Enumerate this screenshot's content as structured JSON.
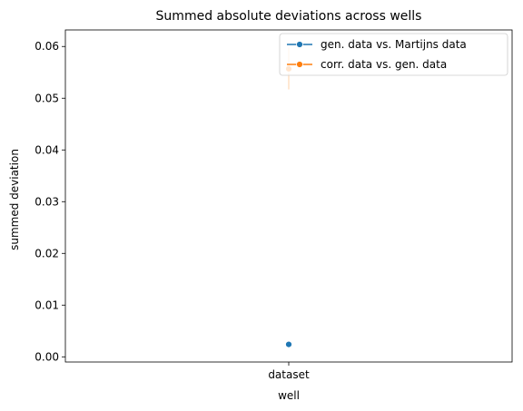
{
  "chart_data": {
    "type": "scatter",
    "title": "Summed absolute deviations across wells",
    "xlabel": "well",
    "ylabel": "summed deviation",
    "categories": [
      "dataset"
    ],
    "ylim": [
      -0.001,
      0.0632
    ],
    "yticks": [
      0.0,
      0.01,
      0.02,
      0.03,
      0.04,
      0.05,
      0.06
    ],
    "ytick_labels": [
      "0.00",
      "0.01",
      "0.02",
      "0.03",
      "0.04",
      "0.05",
      "0.06"
    ],
    "grid": false,
    "legend_position": "upper right",
    "series": [
      {
        "name": "gen. data vs. Martijns data",
        "color": "#1f77b4",
        "values": [
          0.0024
        ],
        "error": [
          0.0024,
          0.0024
        ]
      },
      {
        "name": "corr. data vs. gen. data",
        "color": "#ff7f0e",
        "values": [
          0.0557
        ],
        "error": [
          0.0517,
          0.0598
        ]
      }
    ]
  }
}
